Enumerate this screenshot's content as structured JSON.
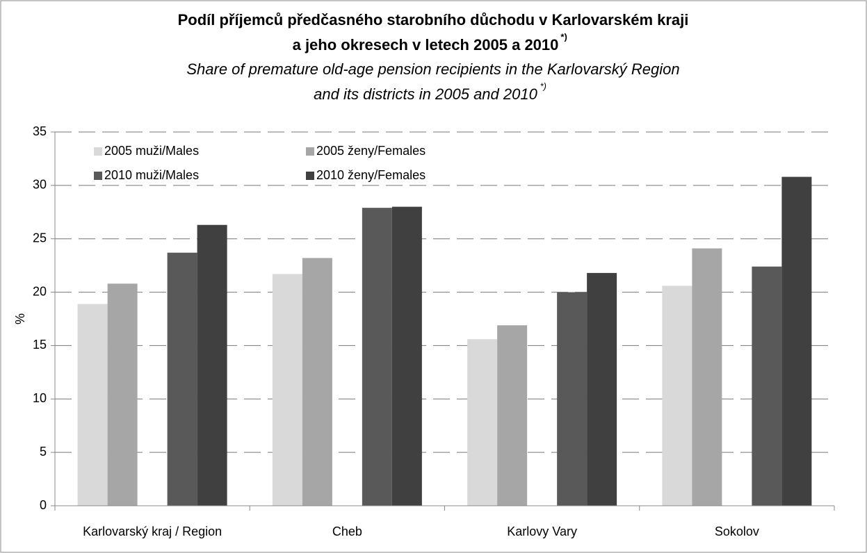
{
  "chart_data": {
    "type": "bar",
    "title": [
      "Podíl příjemců předčasného starobního důchodu v Karlovarském kraji",
      "a jeho okresech v letech 2005 a 2010"
    ],
    "title_note": "*)",
    "subtitle": [
      "Share of premature old-age pension recipients in the Karlovarský Region",
      "and its districts in 2005 and 2010"
    ],
    "subtitle_note": "*)",
    "y_label": "%",
    "categories": [
      "Karlovarský kraj / Region",
      "Cheb",
      "Karlovy Vary",
      "Sokolov"
    ],
    "series": [
      {
        "name": "2005 muži/Males",
        "color": "#d9d9d9",
        "values": [
          18.9,
          21.7,
          15.6,
          20.6
        ]
      },
      {
        "name": "2005 ženy/Females",
        "color": "#a6a6a6",
        "values": [
          20.8,
          23.2,
          16.9,
          24.1
        ]
      },
      {
        "name": "2010 muži/Males",
        "color": "#595959",
        "values": [
          23.7,
          27.9,
          20.0,
          22.4
        ]
      },
      {
        "name": "2010 ženy/Females",
        "color": "#404040",
        "values": [
          26.3,
          28.0,
          21.8,
          30.8
        ]
      }
    ],
    "ylim": [
      0,
      35
    ],
    "yticks": [
      0,
      5,
      10,
      15,
      20,
      25,
      30,
      35
    ],
    "grid": true,
    "legend": "top-left"
  }
}
